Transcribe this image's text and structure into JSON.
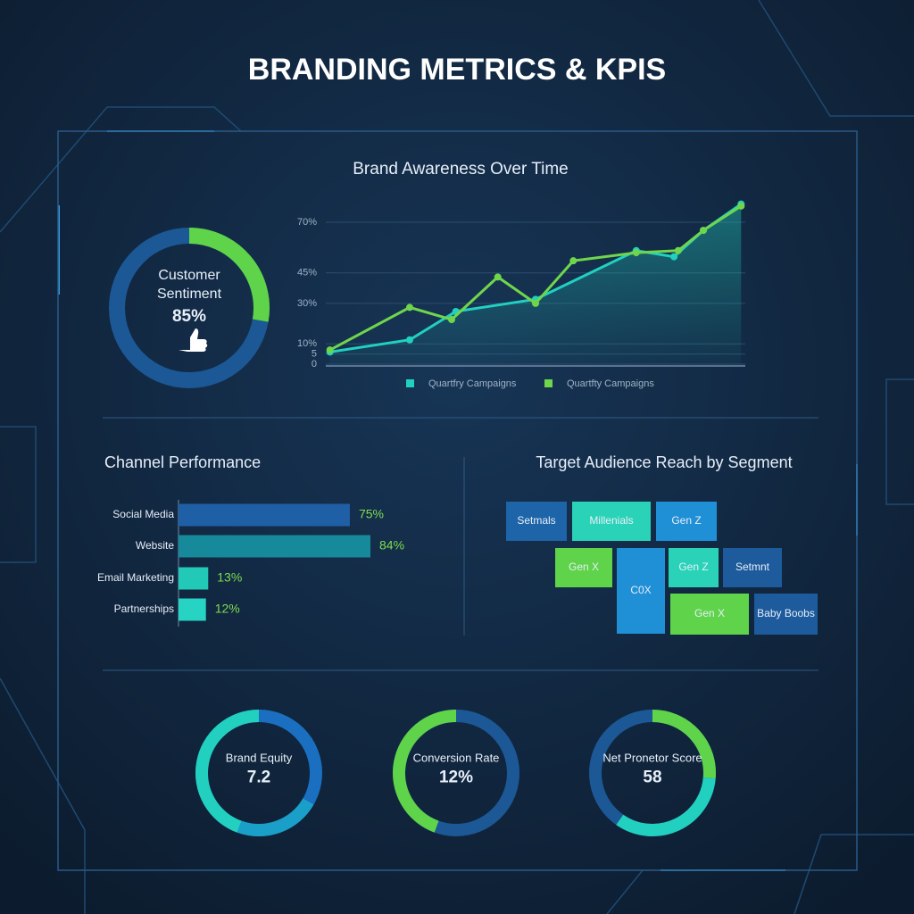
{
  "title": "BRANDING METRICS & KPIS",
  "chart_data": [
    {
      "type": "gauge",
      "label": "Customer Sentiment",
      "value": 85,
      "value_label": "85%",
      "colors": [
        "#5fd34a",
        "#1c5896"
      ]
    },
    {
      "type": "line",
      "title": "Brand Awareness Over Time",
      "ylim": [
        0,
        80
      ],
      "yticks": [
        0,
        5,
        {
          "value": 10,
          "label": "10%"
        },
        {
          "value": 30,
          "label": "30%"
        },
        {
          "value": 45,
          "label": "45%"
        },
        {
          "value": 70,
          "label": "70%"
        }
      ],
      "xlim": [
        0,
        10
      ],
      "grid": true,
      "series": [
        {
          "name": "Quartfry Campaigns",
          "color": "#22d0c0",
          "area": true,
          "x": [
            0.1,
            2.0,
            3.1,
            5.0,
            7.4,
            8.3,
            9.0,
            9.9
          ],
          "values": [
            6,
            12,
            26,
            32,
            56,
            53,
            66,
            79
          ]
        },
        {
          "name": "Quartfty Campaigns",
          "color": "#6fd64c",
          "x": [
            0.1,
            2.0,
            3.0,
            4.1,
            5.0,
            5.9,
            7.4,
            8.4,
            9.0,
            9.9
          ],
          "values": [
            7,
            28,
            22,
            43,
            30,
            51,
            55,
            56,
            66,
            78
          ]
        }
      ]
    },
    {
      "type": "hbar",
      "title": "Channel Performance",
      "categories": [
        "Social Media",
        "Website",
        "Email Marketing",
        "Partnerships"
      ],
      "values": [
        75,
        84,
        13,
        12
      ],
      "value_labels": [
        "75%",
        "84%",
        "13%",
        "12%"
      ],
      "colors": [
        "#1f5fa6",
        "#16899a",
        "#22c9b6",
        "#27d3c2"
      ]
    },
    {
      "type": "gauge",
      "label": "Brand Equity",
      "value": 7.2,
      "colors": [
        "#22d0c0",
        "#1b6fc0"
      ]
    },
    {
      "type": "gauge",
      "label": "Conversion Rate",
      "value": 12,
      "value_label": "12%",
      "colors": [
        "#5fd34a",
        "#1c5896"
      ]
    },
    {
      "type": "gauge",
      "label": "Net Pronetor Score",
      "value": 58,
      "colors": [
        "#5fd34a",
        "#1c5896"
      ]
    }
  ],
  "segments": {
    "title": "Target Audience Reach by Segment",
    "labels": [
      "Setmals",
      "Millenials",
      "Gen Z",
      "Gen X",
      "C0X",
      "Gen Z",
      "Setmnt",
      "Gen X",
      "Baby Boobs"
    ],
    "colors": [
      "#1d64a8",
      "#2ad3b8",
      "#1f8fd6",
      "#5fd34a",
      "#1f8fd6",
      "#2ad3b8",
      "#1d5b9c",
      "#5fd34a",
      "#1d5b9c"
    ]
  }
}
